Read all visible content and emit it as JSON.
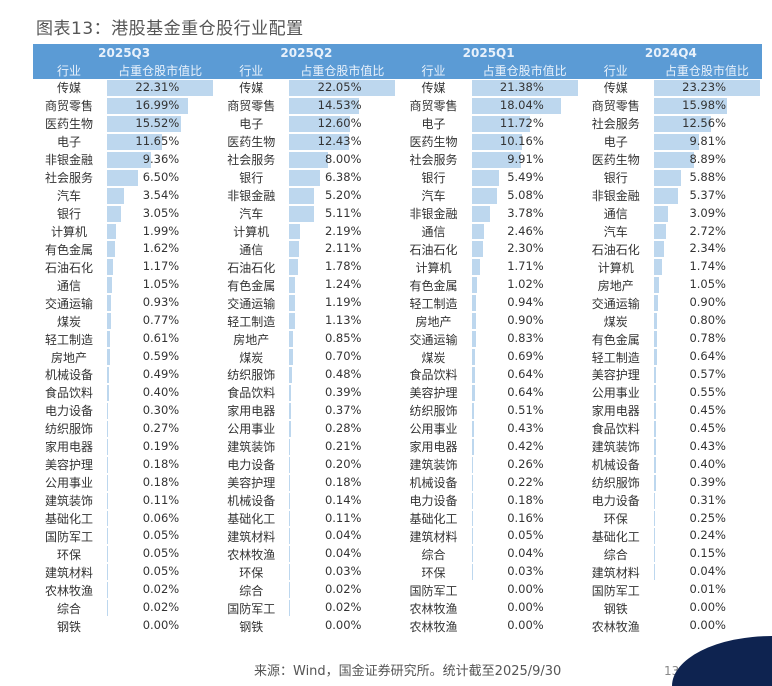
{
  "title": "图表13：港股基金重仓股行业配置",
  "columns": {
    "industry": "行业",
    "ratio": "占重仓股市值比"
  },
  "footer": "来源：Wind，国金证券研究所。统计截至2025/9/30",
  "page_number": "13",
  "bar_color": "#bdd7ee",
  "header_color": "#5b9bd5",
  "quarters": [
    {
      "label": "2025Q3",
      "rows": [
        [
          "传媒",
          "22.31%"
        ],
        [
          "商贸零售",
          "16.99%"
        ],
        [
          "医药生物",
          "15.52%"
        ],
        [
          "电子",
          "11.65%"
        ],
        [
          "非银金融",
          "9.36%"
        ],
        [
          "社会服务",
          "6.50%"
        ],
        [
          "汽车",
          "3.54%"
        ],
        [
          "银行",
          "3.05%"
        ],
        [
          "计算机",
          "1.99%"
        ],
        [
          "有色金属",
          "1.62%"
        ],
        [
          "石油石化",
          "1.17%"
        ],
        [
          "通信",
          "1.05%"
        ],
        [
          "交通运输",
          "0.93%"
        ],
        [
          "煤炭",
          "0.77%"
        ],
        [
          "轻工制造",
          "0.61%"
        ],
        [
          "房地产",
          "0.59%"
        ],
        [
          "机械设备",
          "0.49%"
        ],
        [
          "食品饮料",
          "0.40%"
        ],
        [
          "电力设备",
          "0.30%"
        ],
        [
          "纺织服饰",
          "0.27%"
        ],
        [
          "家用电器",
          "0.19%"
        ],
        [
          "美容护理",
          "0.18%"
        ],
        [
          "公用事业",
          "0.18%"
        ],
        [
          "建筑装饰",
          "0.11%"
        ],
        [
          "基础化工",
          "0.06%"
        ],
        [
          "国防军工",
          "0.05%"
        ],
        [
          "环保",
          "0.05%"
        ],
        [
          "建筑材料",
          "0.05%"
        ],
        [
          "农林牧渔",
          "0.02%"
        ],
        [
          "综合",
          "0.02%"
        ],
        [
          "钢铁",
          "0.00%"
        ]
      ]
    },
    {
      "label": "2025Q2",
      "rows": [
        [
          "传媒",
          "22.05%"
        ],
        [
          "商贸零售",
          "14.53%"
        ],
        [
          "电子",
          "12.60%"
        ],
        [
          "医药生物",
          "12.43%"
        ],
        [
          "社会服务",
          "8.00%"
        ],
        [
          "银行",
          "6.38%"
        ],
        [
          "非银金融",
          "5.20%"
        ],
        [
          "汽车",
          "5.11%"
        ],
        [
          "计算机",
          "2.19%"
        ],
        [
          "通信",
          "2.11%"
        ],
        [
          "石油石化",
          "1.78%"
        ],
        [
          "有色金属",
          "1.24%"
        ],
        [
          "交通运输",
          "1.19%"
        ],
        [
          "轻工制造",
          "1.13%"
        ],
        [
          "房地产",
          "0.85%"
        ],
        [
          "煤炭",
          "0.70%"
        ],
        [
          "纺织服饰",
          "0.48%"
        ],
        [
          "食品饮料",
          "0.39%"
        ],
        [
          "家用电器",
          "0.37%"
        ],
        [
          "公用事业",
          "0.28%"
        ],
        [
          "建筑装饰",
          "0.21%"
        ],
        [
          "电力设备",
          "0.20%"
        ],
        [
          "美容护理",
          "0.18%"
        ],
        [
          "机械设备",
          "0.14%"
        ],
        [
          "基础化工",
          "0.11%"
        ],
        [
          "建筑材料",
          "0.04%"
        ],
        [
          "农林牧渔",
          "0.04%"
        ],
        [
          "环保",
          "0.03%"
        ],
        [
          "综合",
          "0.02%"
        ],
        [
          "国防军工",
          "0.02%"
        ],
        [
          "钢铁",
          "0.00%"
        ]
      ]
    },
    {
      "label": "2025Q1",
      "rows": [
        [
          "传媒",
          "21.38%"
        ],
        [
          "商贸零售",
          "18.04%"
        ],
        [
          "电子",
          "11.72%"
        ],
        [
          "医药生物",
          "10.16%"
        ],
        [
          "社会服务",
          "9.91%"
        ],
        [
          "银行",
          "5.49%"
        ],
        [
          "汽车",
          "5.08%"
        ],
        [
          "非银金融",
          "3.78%"
        ],
        [
          "通信",
          "2.46%"
        ],
        [
          "石油石化",
          "2.30%"
        ],
        [
          "计算机",
          "1.71%"
        ],
        [
          "有色金属",
          "1.02%"
        ],
        [
          "轻工制造",
          "0.94%"
        ],
        [
          "房地产",
          "0.90%"
        ],
        [
          "交通运输",
          "0.83%"
        ],
        [
          "煤炭",
          "0.69%"
        ],
        [
          "食品饮料",
          "0.64%"
        ],
        [
          "美容护理",
          "0.64%"
        ],
        [
          "纺织服饰",
          "0.51%"
        ],
        [
          "公用事业",
          "0.43%"
        ],
        [
          "家用电器",
          "0.42%"
        ],
        [
          "建筑装饰",
          "0.26%"
        ],
        [
          "机械设备",
          "0.22%"
        ],
        [
          "电力设备",
          "0.18%"
        ],
        [
          "基础化工",
          "0.16%"
        ],
        [
          "建筑材料",
          "0.05%"
        ],
        [
          "综合",
          "0.04%"
        ],
        [
          "环保",
          "0.03%"
        ],
        [
          "国防军工",
          "0.00%"
        ],
        [
          "农林牧渔",
          "0.00%"
        ],
        [
          "农林牧渔",
          "0.00%"
        ]
      ]
    },
    {
      "label": "2024Q4",
      "rows": [
        [
          "传媒",
          "23.23%"
        ],
        [
          "商贸零售",
          "15.98%"
        ],
        [
          "社会服务",
          "12.56%"
        ],
        [
          "电子",
          "9.81%"
        ],
        [
          "医药生物",
          "8.89%"
        ],
        [
          "银行",
          "5.88%"
        ],
        [
          "非银金融",
          "5.37%"
        ],
        [
          "通信",
          "3.09%"
        ],
        [
          "汽车",
          "2.72%"
        ],
        [
          "石油石化",
          "2.34%"
        ],
        [
          "计算机",
          "1.74%"
        ],
        [
          "房地产",
          "1.05%"
        ],
        [
          "交通运输",
          "0.90%"
        ],
        [
          "煤炭",
          "0.80%"
        ],
        [
          "有色金属",
          "0.78%"
        ],
        [
          "轻工制造",
          "0.64%"
        ],
        [
          "美容护理",
          "0.57%"
        ],
        [
          "公用事业",
          "0.55%"
        ],
        [
          "家用电器",
          "0.45%"
        ],
        [
          "食品饮料",
          "0.45%"
        ],
        [
          "建筑装饰",
          "0.43%"
        ],
        [
          "机械设备",
          "0.40%"
        ],
        [
          "纺织服饰",
          "0.39%"
        ],
        [
          "电力设备",
          "0.31%"
        ],
        [
          "环保",
          "0.25%"
        ],
        [
          "基础化工",
          "0.24%"
        ],
        [
          "综合",
          "0.15%"
        ],
        [
          "建筑材料",
          "0.04%"
        ],
        [
          "国防军工",
          "0.01%"
        ],
        [
          "钢铁",
          "0.00%"
        ],
        [
          "农林牧渔",
          "0.00%"
        ]
      ]
    }
  ]
}
